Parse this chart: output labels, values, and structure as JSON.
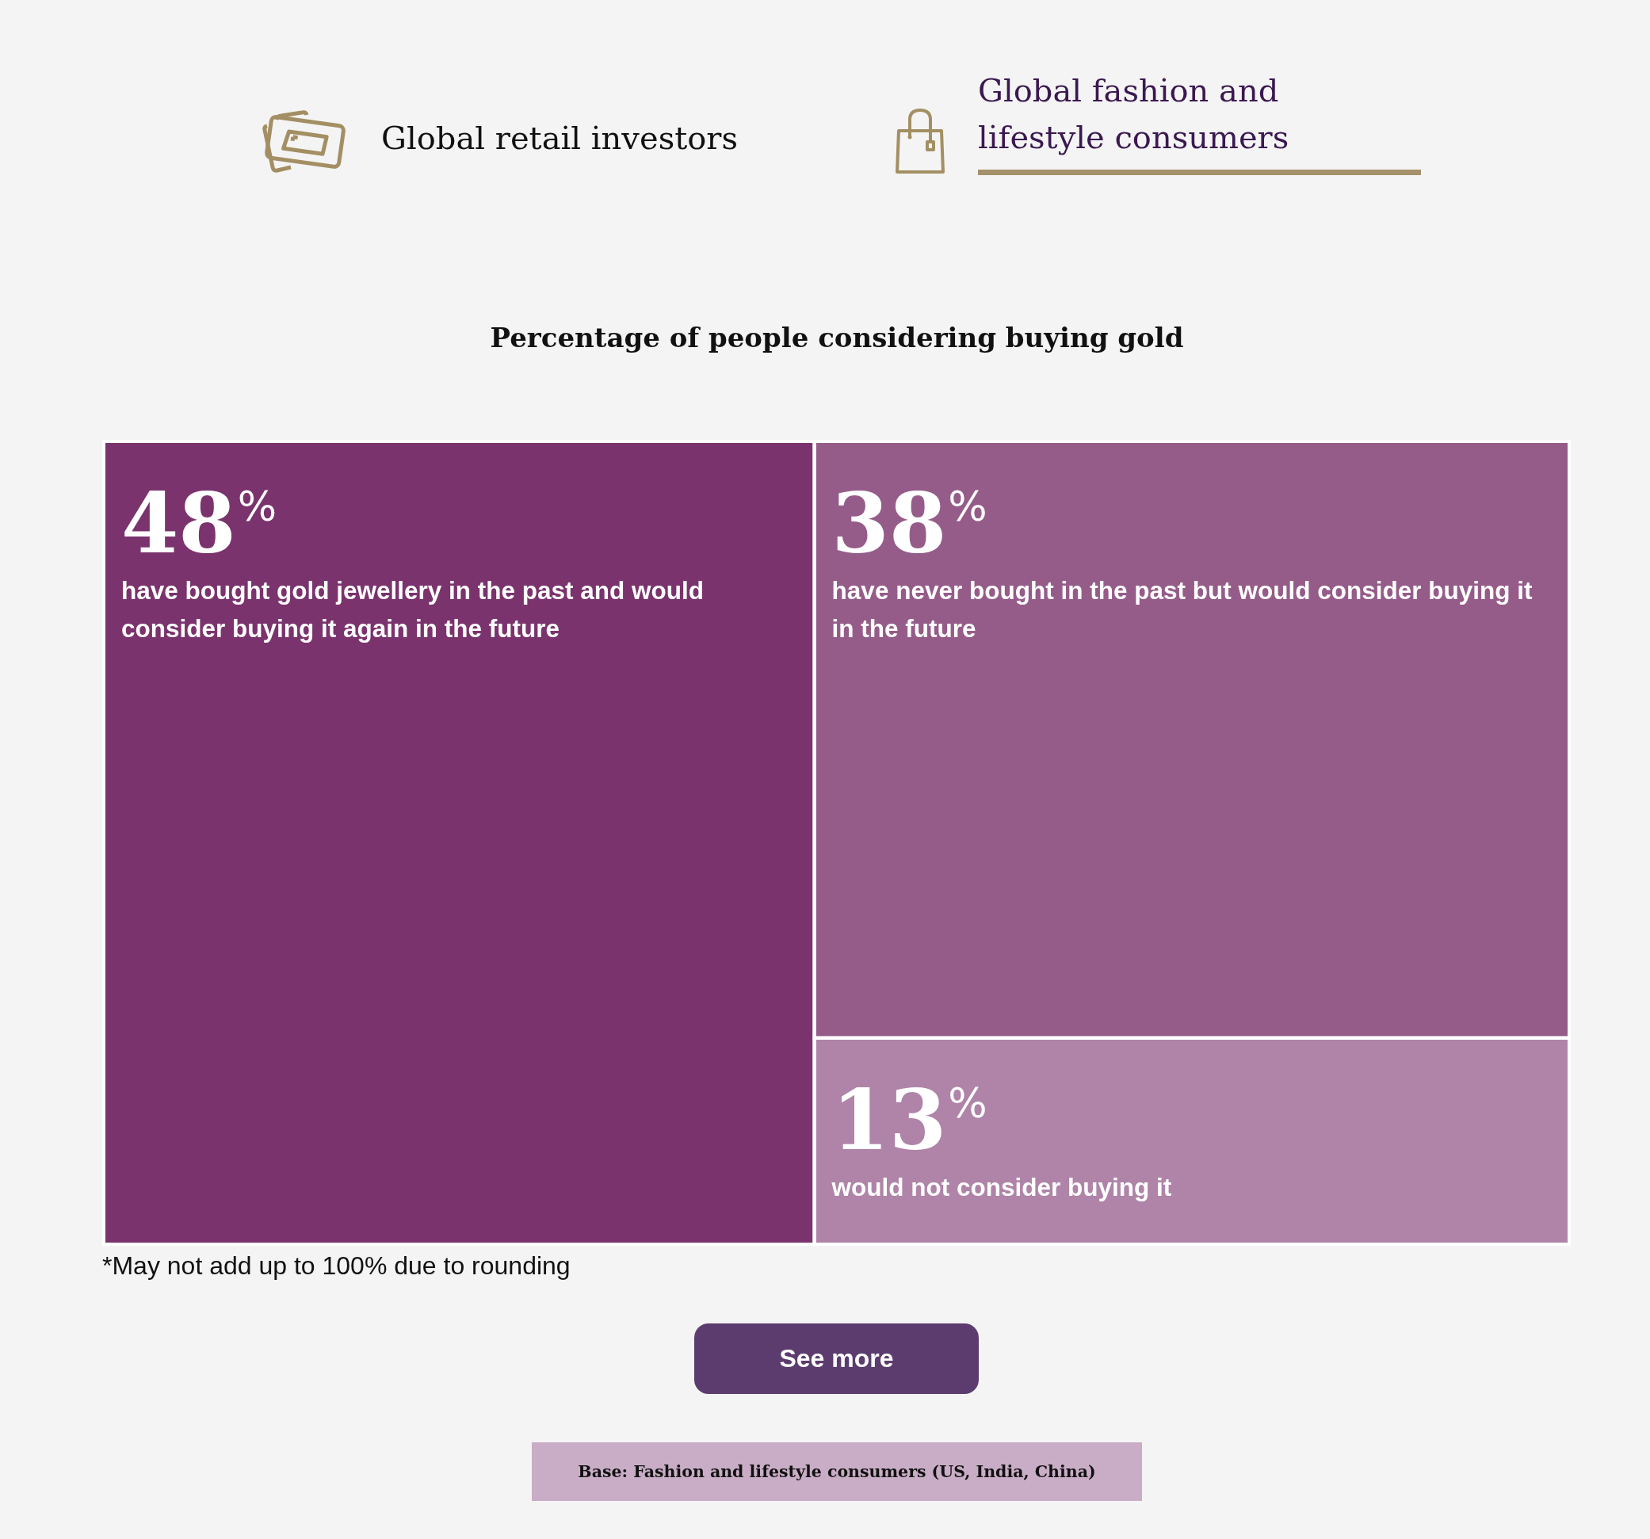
{
  "chart_data": {
    "type": "other",
    "title": "Percentage of people considering buying gold",
    "subtitle": "Global fashion and lifestyle consumers",
    "categories": [
      "have bought gold jewellery in the past and would consider buying it again in the future",
      "have never bought in the past but would consider buying it in the future",
      "would not consider buying it"
    ],
    "values": [
      48,
      38,
      13
    ],
    "value_labels": [
      "48$^{%}$",
      "38$^{%}$",
      "13$^{%}$"
    ],
    "colors": [
      "#7a336d",
      "#955c89",
      "#af84a8"
    ],
    "annotations": [
      "Global retail investors",
      "*May not add up to 100% due to rounding",
      "See more",
      "Base: Fashion and lifestyle consumers (US, India, China)"
    ]
  }
}
